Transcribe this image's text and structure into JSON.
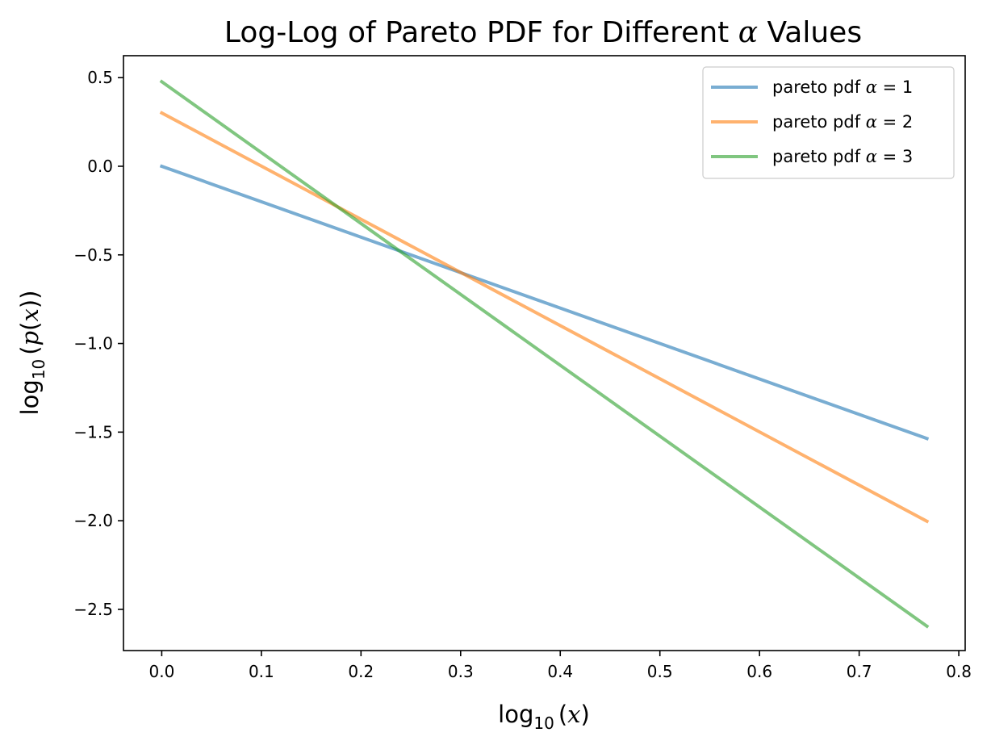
{
  "chart_data": {
    "type": "line",
    "title": "Log-Log of Pareto PDF for Different α Values",
    "title_plain": "Log-Log of Pareto PDF for Different ",
    "title_symbol": "α",
    "title_tail": " Values",
    "xlabel": "log10(x)",
    "ylabel": "log10(p(x))",
    "xlabel_parts": {
      "fn": "log",
      "sub": "10",
      "arg": "x"
    },
    "ylabel_parts": {
      "fn": "log",
      "sub": "10",
      "arg_fn": "p",
      "arg": "x"
    },
    "xlim": [
      -0.0384,
      0.8064
    ],
    "ylim": [
      -2.7325,
      0.6238
    ],
    "x_ticks": [
      0.0,
      0.1,
      0.2,
      0.3,
      0.4,
      0.5,
      0.6,
      0.7,
      0.8
    ],
    "x_tick_labels": [
      "0.0",
      "0.1",
      "0.2",
      "0.3",
      "0.4",
      "0.5",
      "0.6",
      "0.7",
      "0.8"
    ],
    "y_ticks": [
      0.5,
      0.0,
      -0.5,
      -1.0,
      -1.5,
      -2.0,
      -2.5
    ],
    "y_tick_labels": [
      "0.5",
      "0.0",
      "−0.5",
      "−1.0",
      "−1.5",
      "−2.0",
      "−2.5"
    ],
    "grid": false,
    "legend_position": "top-right",
    "series": [
      {
        "name": "pareto pdf α = 1",
        "legend_prefix": "pareto pdf ",
        "legend_symbol": "α",
        "legend_eq": " = ",
        "legend_value": "1",
        "color": "#1f77b4",
        "x": [
          0.0,
          0.768
        ],
        "y": [
          0.0,
          -1.536
        ]
      },
      {
        "name": "pareto pdf α = 2",
        "legend_prefix": "pareto pdf ",
        "legend_symbol": "α",
        "legend_eq": " = ",
        "legend_value": "2",
        "color": "#ff7f0e",
        "x": [
          0.0,
          0.768
        ],
        "y": [
          0.301,
          -2.003
        ]
      },
      {
        "name": "pareto pdf α = 3",
        "legend_prefix": "pareto pdf ",
        "legend_symbol": "α",
        "legend_eq": " = ",
        "legend_value": "3",
        "color": "#2ca02c",
        "x": [
          0.0,
          0.768
        ],
        "y": [
          0.477,
          -2.595
        ]
      }
    ]
  }
}
